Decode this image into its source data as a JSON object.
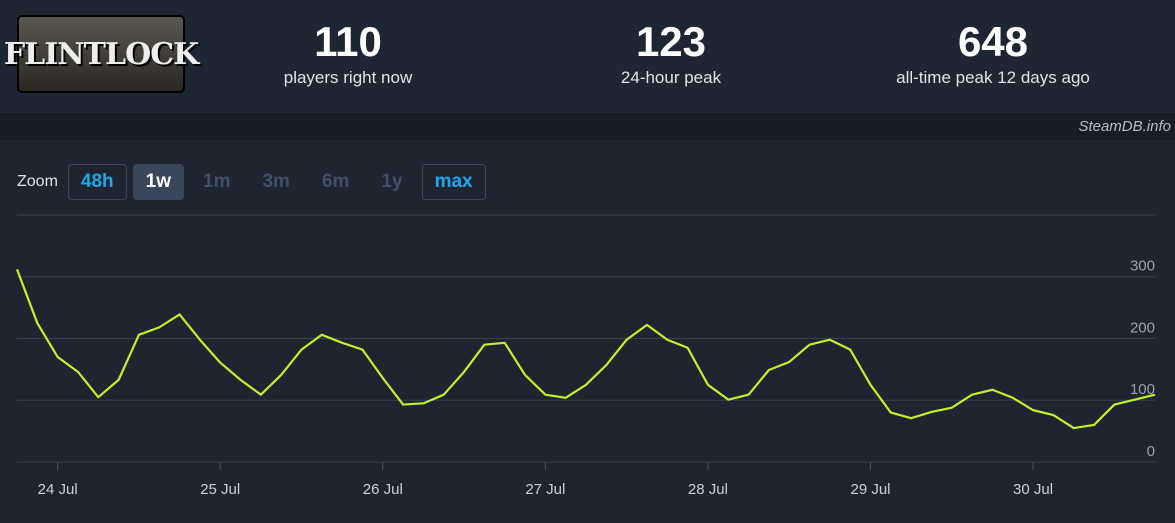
{
  "header": {
    "logo": "FLINTLOCK",
    "stats": [
      {
        "value": "110",
        "label": "players right now"
      },
      {
        "value": "123",
        "label": "24-hour peak"
      },
      {
        "value": "648",
        "label": "all-time peak 12 days ago"
      }
    ]
  },
  "watermark": "SteamDB.info",
  "zoom": {
    "label": "Zoom",
    "buttons": [
      "48h",
      "1w",
      "1m",
      "3m",
      "6m",
      "1y",
      "max"
    ]
  },
  "chart_data": {
    "type": "line",
    "categories": [
      null,
      null,
      "24 Jul",
      null,
      null,
      null,
      null,
      null,
      null,
      null,
      "25 Jul",
      null,
      null,
      null,
      null,
      null,
      null,
      null,
      "26 Jul",
      null,
      null,
      null,
      null,
      null,
      null,
      null,
      "27 Jul",
      null,
      null,
      null,
      null,
      null,
      null,
      null,
      "28 Jul",
      null,
      null,
      null,
      null,
      null,
      null,
      null,
      "29 Jul",
      null,
      null,
      null,
      null,
      null,
      null,
      null,
      "30 Jul",
      null,
      null,
      null,
      null,
      null,
      null
    ],
    "series": [
      {
        "name": "Players",
        "color": "#bff22a",
        "values": [
          312,
          225,
          170,
          146,
          105,
          133,
          206,
          218,
          239,
          198,
          161,
          133,
          109,
          141,
          182,
          206,
          193,
          182,
          136,
          93,
          95,
          109,
          146,
          190,
          193,
          141,
          109,
          104,
          125,
          157,
          198,
          222,
          198,
          185,
          125,
          101,
          109,
          149,
          162,
          190,
          198,
          182,
          125,
          80,
          71,
          81,
          88,
          109,
          117,
          104,
          84,
          76,
          55,
          60,
          93,
          101,
          109
        ]
      }
    ],
    "ylim": [
      0,
      400
    ],
    "yticks": [
      0,
      100,
      200,
      300
    ],
    "grid": true
  }
}
